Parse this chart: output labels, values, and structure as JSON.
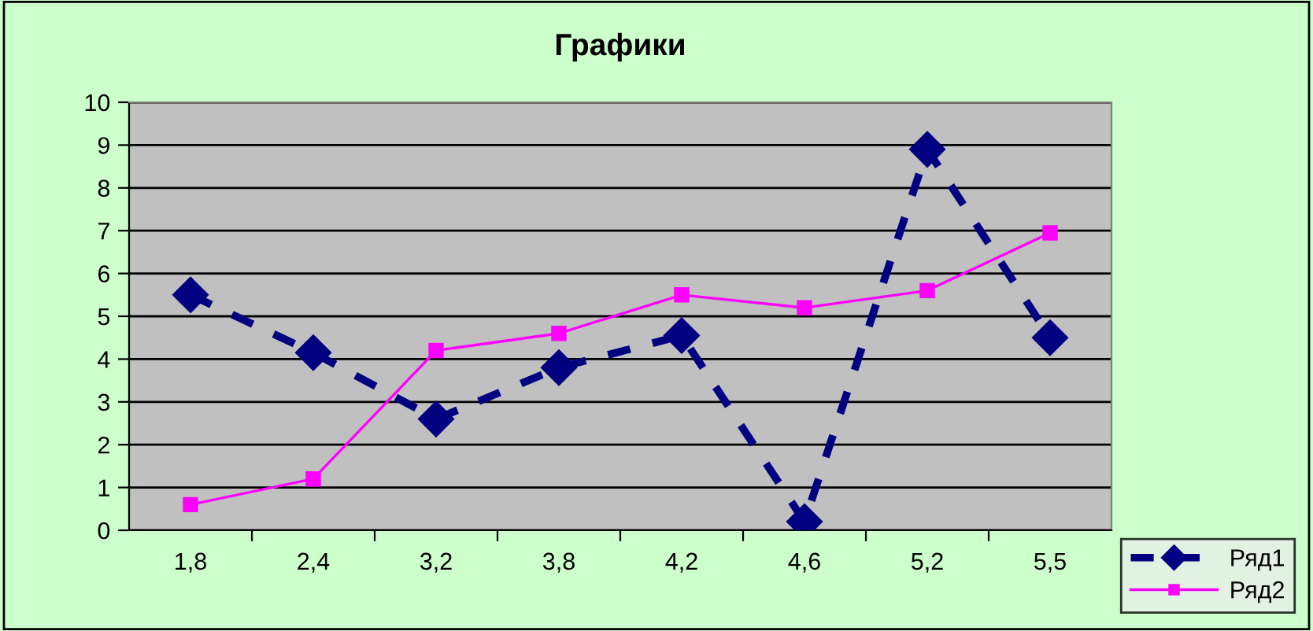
{
  "chart_data": {
    "type": "line",
    "title": "Графики",
    "categories": [
      "1,8",
      "2,4",
      "3,2",
      "3,8",
      "4,2",
      "4,6",
      "5,2",
      "5,5"
    ],
    "series": [
      {
        "name": "Ряд1",
        "color": "#000080",
        "values": [
          5.5,
          4.15,
          2.6,
          3.8,
          4.55,
          0.2,
          8.9,
          4.5
        ],
        "marker": "diamond",
        "line_style": "dashed"
      },
      {
        "name": "Ряд2",
        "color": "#ff00ff",
        "values": [
          0.6,
          1.2,
          4.2,
          4.6,
          5.5,
          5.2,
          5.6,
          6.95
        ],
        "marker": "square",
        "line_style": "solid"
      }
    ],
    "ylim": [
      0,
      10
    ],
    "yticks": [
      0,
      1,
      2,
      3,
      4,
      5,
      6,
      7,
      8,
      9,
      10
    ],
    "grid": "y",
    "legend": "bottom right"
  }
}
